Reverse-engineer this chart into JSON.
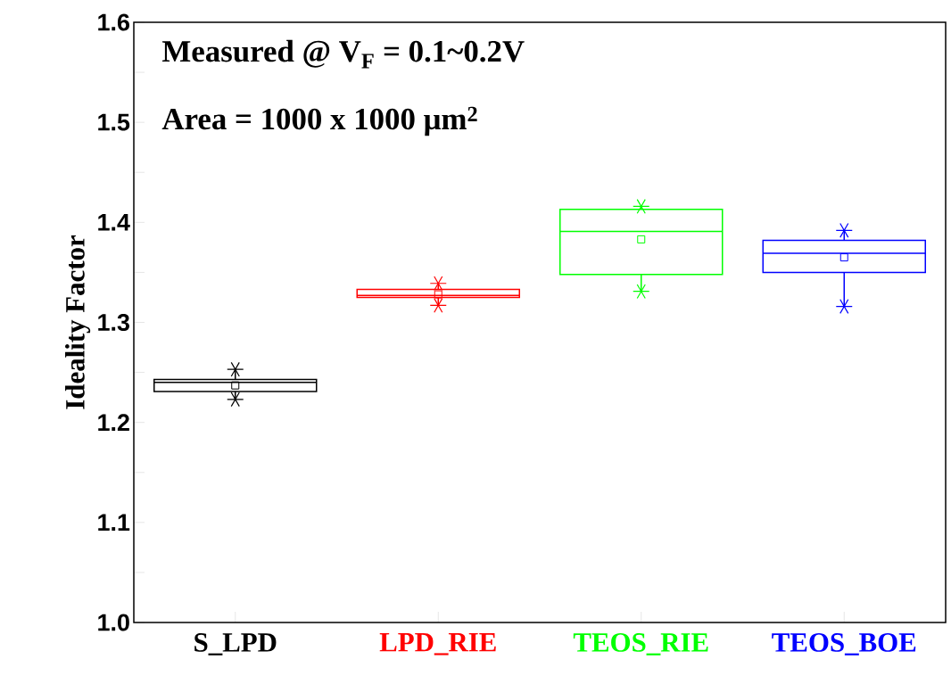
{
  "chart_data": {
    "type": "box",
    "ylabel": "Ideality Factor",
    "annotations": [
      "Measured @ V$_{F}$ = 0.1~0.2V",
      "Area = 1000 x 1000 μm$^{2}$"
    ],
    "categories": [
      "S_LPD",
      "LPD_RIE",
      "TEOS_RIE",
      "TEOS_BOE"
    ],
    "colors": [
      "#000000",
      "#ff0000",
      "#00ff00",
      "#0000ff"
    ],
    "boxes": [
      {
        "low": 1.223,
        "q1": 1.231,
        "median": 1.24,
        "q3": 1.243,
        "high": 1.253,
        "mean": 1.237
      },
      {
        "low": 1.317,
        "q1": 1.325,
        "median": 1.327,
        "q3": 1.333,
        "high": 1.339,
        "mean": 1.328
      },
      {
        "low": 1.331,
        "q1": 1.348,
        "median": 1.391,
        "q3": 1.413,
        "high": 1.416,
        "mean": 1.383
      },
      {
        "low": 1.316,
        "q1": 1.35,
        "median": 1.369,
        "q3": 1.382,
        "high": 1.392,
        "mean": 1.365
      }
    ],
    "ylim": [
      1.0,
      1.6
    ],
    "yticks": [
      {
        "value": 1.0,
        "label": "1.0"
      },
      {
        "value": 1.05,
        "label": null
      },
      1.1,
      {
        "value": 1.15,
        "label": null
      },
      1.2,
      {
        "value": 1.25,
        "label": null
      },
      1.3,
      {
        "value": 1.35,
        "label": null
      },
      1.4,
      {
        "value": 1.45,
        "label": null
      },
      1.5,
      {
        "value": 1.55,
        "label": null
      },
      1.6
    ],
    "grid": false
  }
}
